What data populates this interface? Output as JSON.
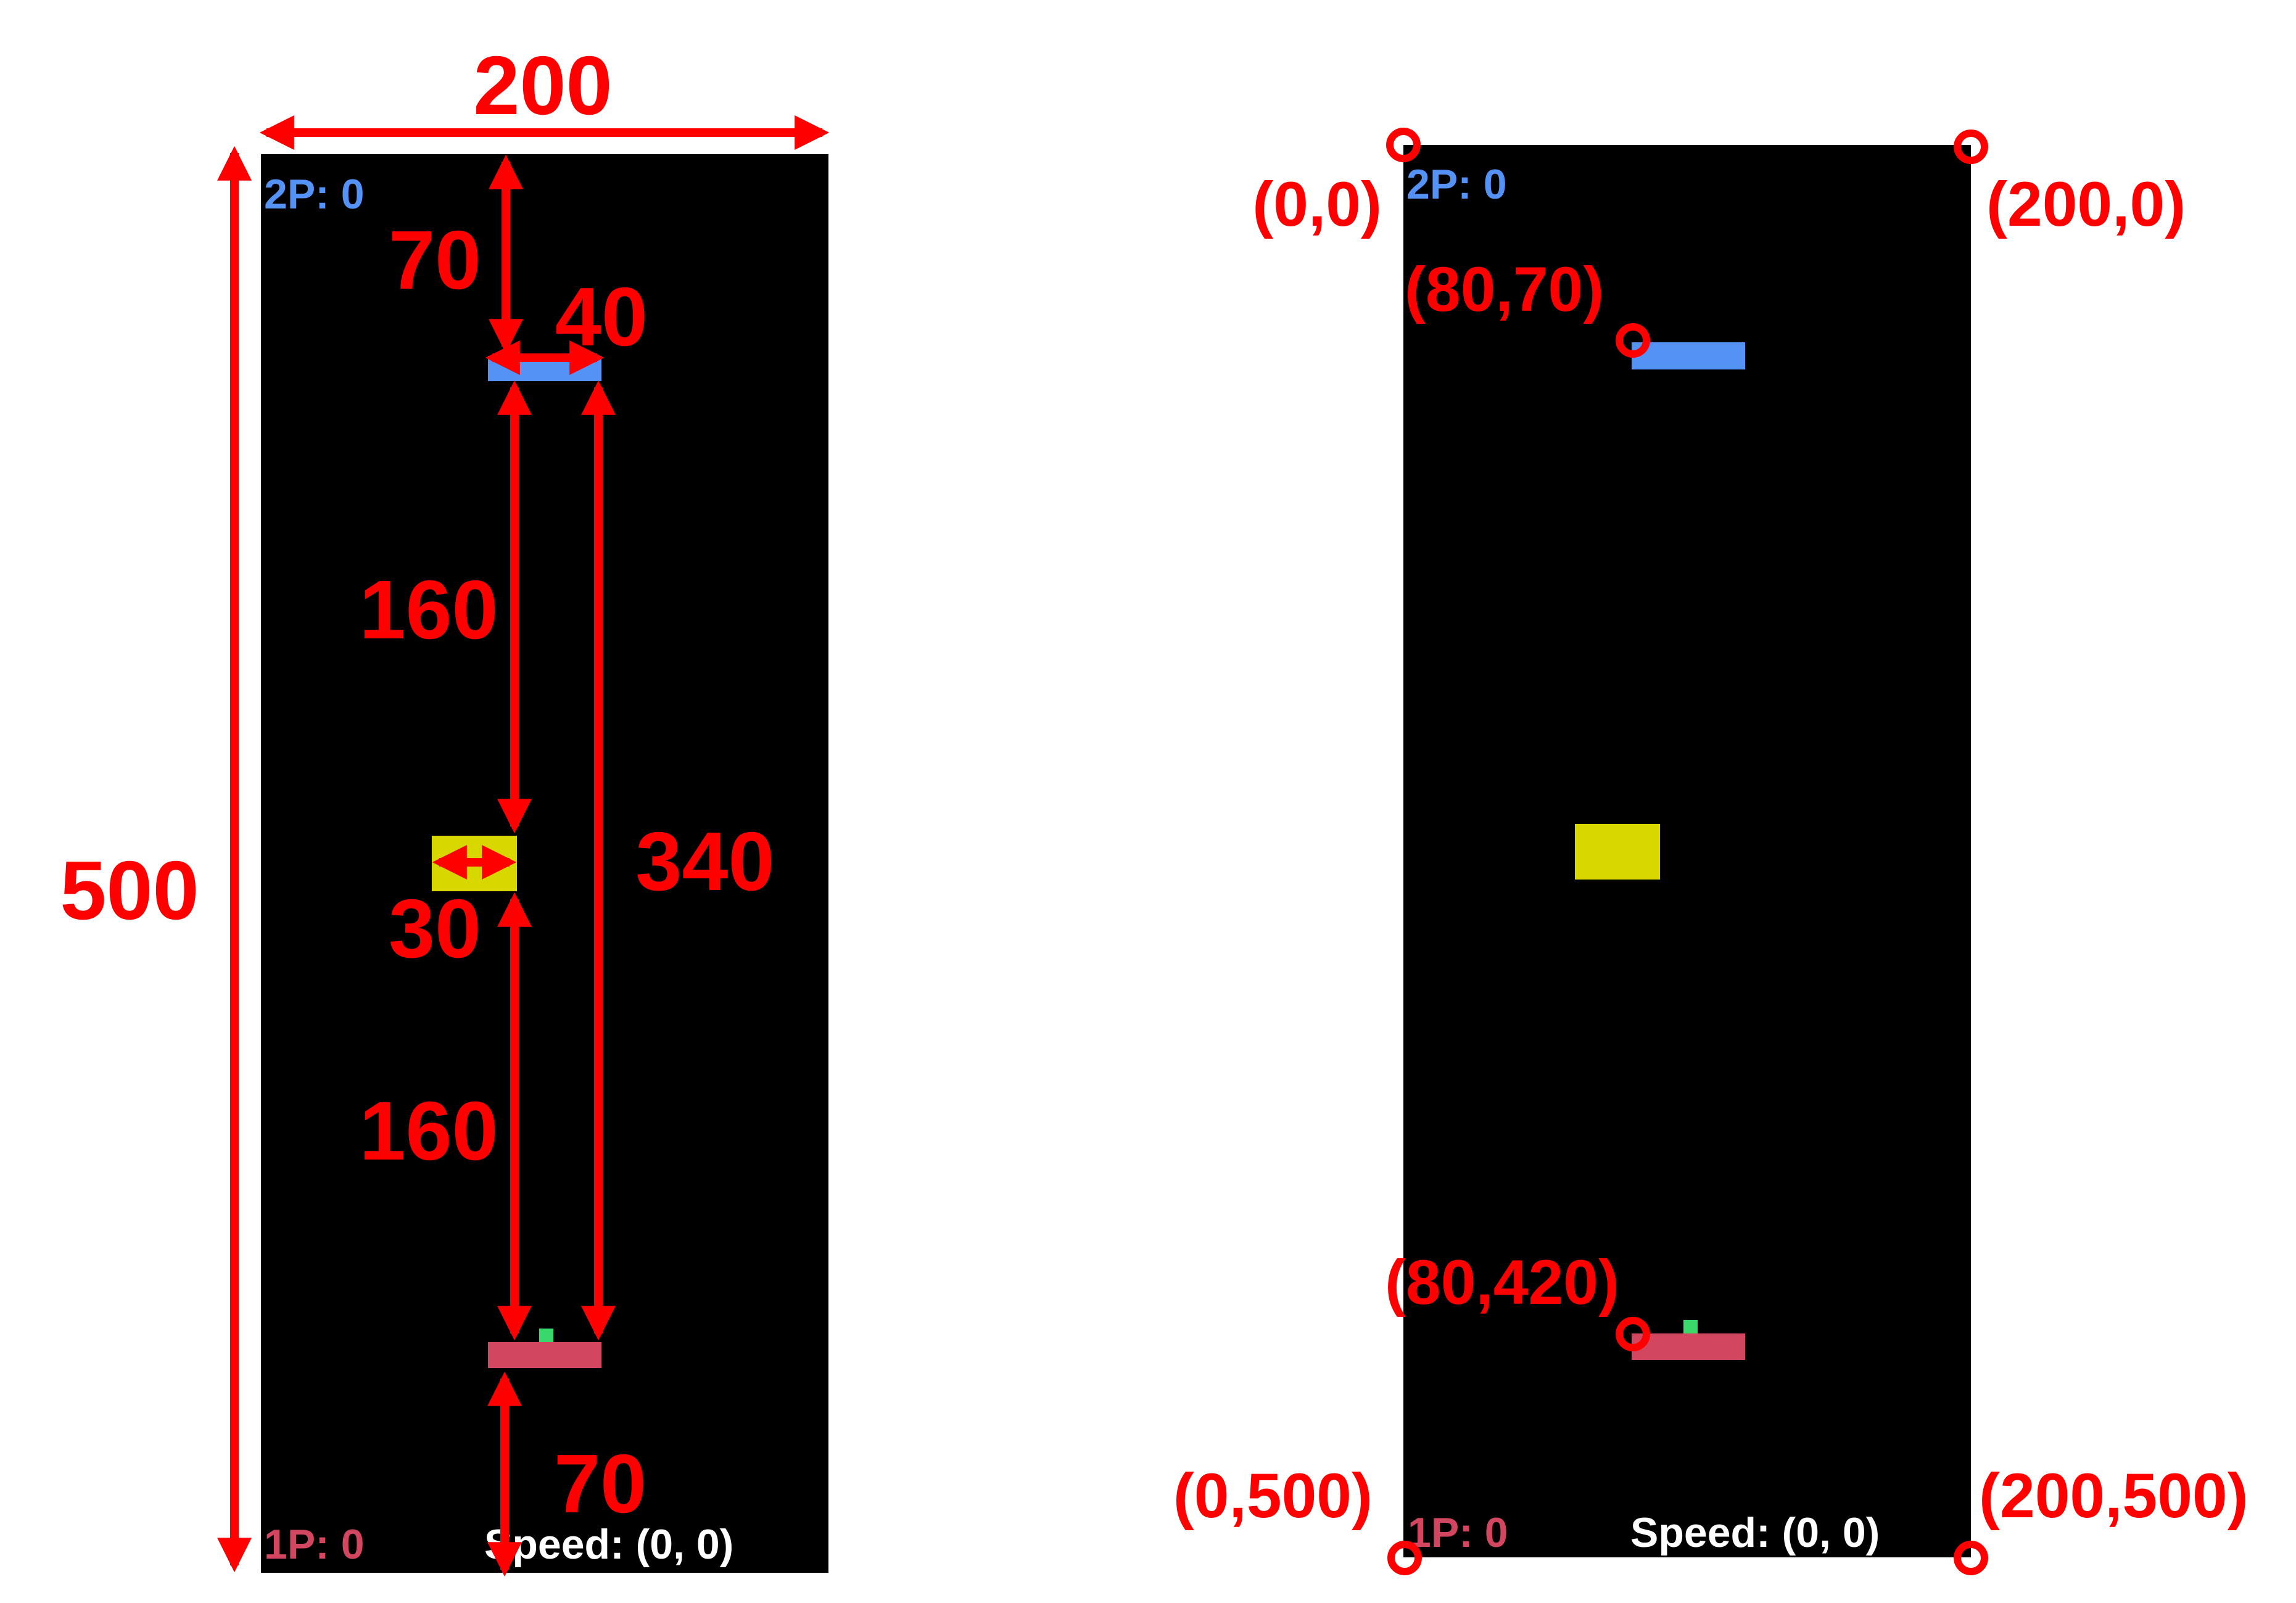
{
  "colors": {
    "annotation": "#ff0000",
    "field": "#000000",
    "player2": "#5592f5",
    "player1": "#d2465f",
    "ball": "#d8d800",
    "marker": "#3ad86a",
    "speed_text": "#ffffff"
  },
  "left_panel": {
    "width_label": "200",
    "height_label": "500",
    "top_gap_label": "70",
    "paddle_width_label": "40",
    "upper_gap_label": "160",
    "ball_size_label": "30",
    "paddle_gap_label": "340",
    "lower_gap_label": "160",
    "bottom_gap_label": "70",
    "score_2p": "2P: 0",
    "score_1p": "1P: 0",
    "speed_text": "Speed: (0, 0)"
  },
  "right_panel": {
    "top_left_coord": "(0,0)",
    "top_right_coord": "(200,0)",
    "paddle2_coord": "(80,70)",
    "paddle1_coord": "(80,420)",
    "bottom_left_coord": "(0,500)",
    "bottom_right_coord": "(200,500)",
    "score_2p": "2P: 0",
    "score_1p": "1P: 0",
    "speed_text": "Speed: (0, 0)"
  }
}
